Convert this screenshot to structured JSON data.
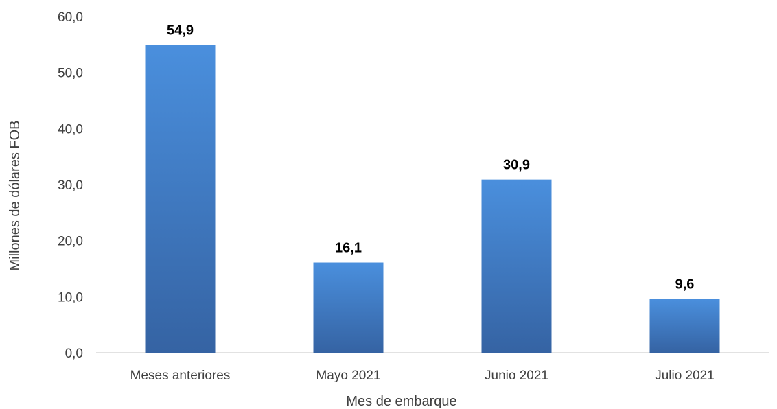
{
  "chart_data": {
    "type": "bar",
    "categories": [
      "Meses anteriores",
      "Mayo 2021",
      "Junio 2021",
      "Julio 2021"
    ],
    "values": [
      54.9,
      16.1,
      30.9,
      9.6
    ],
    "data_labels": [
      "54,9",
      "16,1",
      "30,9",
      "9,6"
    ],
    "xlabel": "Mes de embarque",
    "ylabel": "Millones de dólares FOB",
    "ylim": [
      0,
      60
    ],
    "y_ticks": [
      0,
      10,
      20,
      30,
      40,
      50,
      60
    ],
    "y_tick_labels": [
      "0,0",
      "10,0",
      "20,0",
      "30,0",
      "40,0",
      "50,0",
      "60,0"
    ],
    "grid": false,
    "legend": "none",
    "colors": {
      "bar_top": "#4a8fdd",
      "bar_bottom": "#3563a3",
      "axis": "#d9d9d9"
    }
  }
}
